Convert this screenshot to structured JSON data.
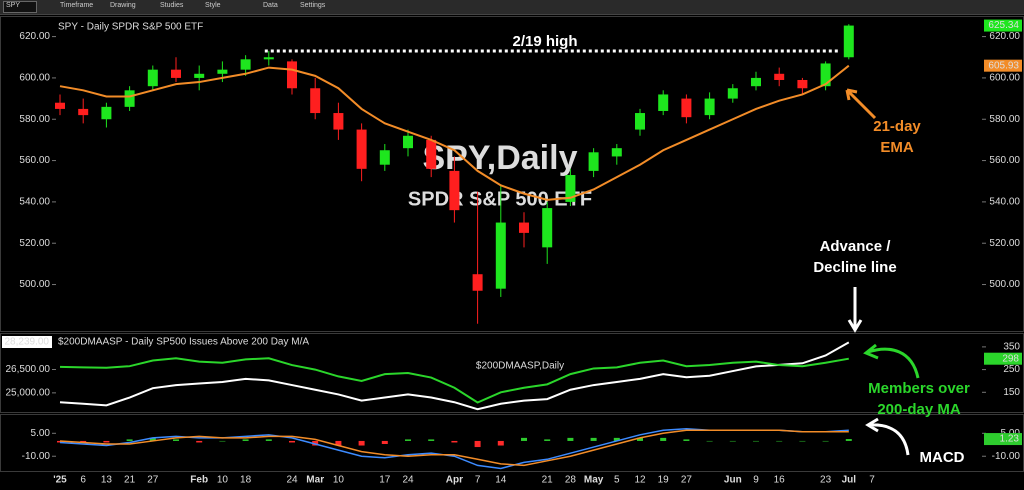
{
  "toolbar": {
    "symbol": "SPY",
    "items": [
      "Timeframe",
      "Drawing",
      "Studies",
      "Style",
      "Data",
      "Settings"
    ]
  },
  "chart_data": [
    {
      "type": "candlestick",
      "title": "SPY - Daily  SPDR S&P 500 ETF",
      "watermark": [
        "SPY,Daily",
        "SPDR S&P 500 ETF"
      ],
      "categories": [
        "'25",
        "6",
        "13",
        "21",
        "27",
        null,
        "Feb",
        "10",
        "18",
        null,
        "24",
        "Mar",
        "10",
        null,
        "17",
        "24",
        null,
        "Apr",
        "7",
        "14",
        null,
        "21",
        "28",
        "May",
        "5",
        "12",
        "19",
        "27",
        null,
        "Jun",
        "9",
        "16",
        null,
        "23",
        "Jul",
        "7"
      ],
      "open": [
        588,
        585,
        580,
        586,
        596,
        604,
        600,
        602,
        604,
        609,
        608,
        595,
        583,
        575,
        558,
        566,
        570,
        555,
        505,
        498,
        530,
        518,
        540,
        555,
        562,
        575,
        584,
        590,
        582,
        590,
        596,
        602,
        599,
        596,
        610,
        null
      ],
      "high": [
        592,
        590,
        588,
        596,
        606,
        610,
        606,
        608,
        611,
        613,
        609,
        600,
        588,
        578,
        568,
        575,
        572,
        562,
        545,
        548,
        535,
        540,
        556,
        566,
        568,
        585,
        594,
        592,
        593,
        597,
        603,
        605,
        600,
        608,
        626,
        null
      ],
      "low": [
        582,
        578,
        576,
        584,
        594,
        598,
        594,
        598,
        601,
        606,
        592,
        580,
        570,
        550,
        555,
        562,
        552,
        530,
        481,
        494,
        518,
        510,
        538,
        552,
        558,
        572,
        582,
        578,
        580,
        588,
        594,
        596,
        592,
        594,
        609,
        null
      ],
      "close": [
        585,
        582,
        586,
        594,
        604,
        600,
        602,
        604,
        609,
        610,
        595,
        583,
        575,
        556,
        565,
        572,
        556,
        536,
        497,
        530,
        525,
        537,
        553,
        564,
        566,
        583,
        592,
        581,
        590,
        595,
        600,
        599,
        595,
        607,
        625.34,
        null
      ],
      "up_color": "#1ee61e",
      "down_color": "#ff1f1f",
      "series": [
        {
          "name": "21-day EMA",
          "color": "#f28c28",
          "values": [
            596,
            594,
            591,
            591,
            594,
            597,
            598,
            600,
            602,
            605,
            604,
            601,
            595,
            585,
            578,
            574,
            570,
            565,
            555,
            548,
            544,
            541,
            542,
            546,
            552,
            558,
            565,
            570,
            575,
            580,
            585,
            589,
            592,
            597,
            605.93,
            null
          ]
        }
      ],
      "reference_line": {
        "label": "2/19 high",
        "value": 613
      },
      "ylim": [
        478,
        629
      ],
      "yticks": [
        {
          "value": 500,
          "label": "500.00"
        },
        {
          "value": 520,
          "label": "520.00"
        },
        {
          "value": 540,
          "label": "540.00"
        },
        {
          "value": 560,
          "label": "560.00"
        },
        {
          "value": 580,
          "label": "580.00"
        },
        {
          "value": 600,
          "label": "600.00"
        },
        {
          "value": 620,
          "label": "620.00"
        }
      ],
      "grid": false
    },
    {
      "type": "line",
      "title": "$200DMAASP - Daily  SP500 Issues Above 200 Day M/A",
      "watermark": "$200DMAASP,Daily",
      "ylim": [
        23900,
        28650
      ],
      "yticks": [
        {
          "value": 25000,
          "label": "25,000.00"
        },
        {
          "value": 26500,
          "label": "26,500.00"
        }
      ],
      "y2lim": [
        72,
        398
      ],
      "y2ticks": [
        150,
        250,
        350
      ],
      "series": [
        {
          "name": "Advance / Decline line",
          "color": "#ffffff",
          "values": [
            24400,
            24300,
            24200,
            24700,
            25300,
            25500,
            25600,
            25700,
            25900,
            25800,
            25500,
            25200,
            24900,
            24500,
            24700,
            24900,
            24700,
            24400,
            23950,
            24300,
            24500,
            24600,
            25200,
            25500,
            25700,
            25900,
            26200,
            26000,
            26100,
            26400,
            26700,
            26800,
            26900,
            27400,
            28239,
            null
          ],
          "value_labels": [
            null,
            null,
            null,
            null,
            null,
            null,
            null,
            null,
            null,
            null,
            null,
            null,
            null,
            null,
            null,
            null,
            null,
            null,
            null,
            null,
            null,
            null,
            null,
            null,
            null,
            null,
            null,
            null,
            null,
            null,
            null,
            null,
            null,
            null,
            "28,239.00",
            null
          ]
        },
        {
          "name": "Members over 200-day MA",
          "color": "#2bd62b",
          "axis": "y2",
          "values": [
            262,
            260,
            258,
            265,
            290,
            300,
            285,
            280,
            295,
            300,
            270,
            250,
            220,
            200,
            230,
            235,
            215,
            170,
            105,
            150,
            170,
            185,
            230,
            255,
            260,
            280,
            290,
            265,
            270,
            280,
            285,
            270,
            265,
            280,
            298,
            null
          ]
        }
      ]
    },
    {
      "type": "macd",
      "ylim": [
        -19,
        15
      ],
      "yticks": [
        {
          "value": 5,
          "label": "5.00"
        },
        {
          "value": -10,
          "label": "-10.00"
        }
      ],
      "series": [
        {
          "name": "MACD",
          "color": "#3d8bff",
          "values": [
            -1,
            -2,
            -3,
            -1,
            2,
            3,
            2,
            2,
            3,
            4,
            2,
            -2,
            -6,
            -10,
            -11,
            -9,
            -8,
            -10,
            -16,
            -18,
            -14,
            -12,
            -8,
            -4,
            0,
            4,
            7,
            8,
            7,
            7,
            7,
            7,
            6,
            6,
            7,
            null
          ]
        },
        {
          "color": "#f28c28",
          "values": [
            0,
            -1,
            -2,
            -2,
            0,
            2,
            3,
            2,
            2,
            3,
            3,
            1,
            -3,
            -7,
            -9,
            -10,
            -9,
            -9,
            -12,
            -15,
            -16,
            -13,
            -10,
            -6,
            -2,
            2,
            5,
            7,
            7,
            7,
            7,
            7,
            6,
            6,
            6,
            null
          ]
        }
      ],
      "histogram": {
        "up_color": "#2ecc2e",
        "down_color": "#ff2a2a",
        "values": [
          -1,
          -1,
          -1,
          1,
          2,
          1,
          -1,
          0,
          1,
          1,
          -1,
          -3,
          -3,
          -3,
          -2,
          1,
          1,
          -1,
          -4,
          -3,
          2,
          1,
          2,
          2,
          2,
          2,
          2,
          1,
          0,
          0,
          0,
          0,
          0,
          0,
          1.23,
          null
        ]
      }
    }
  ]
}
